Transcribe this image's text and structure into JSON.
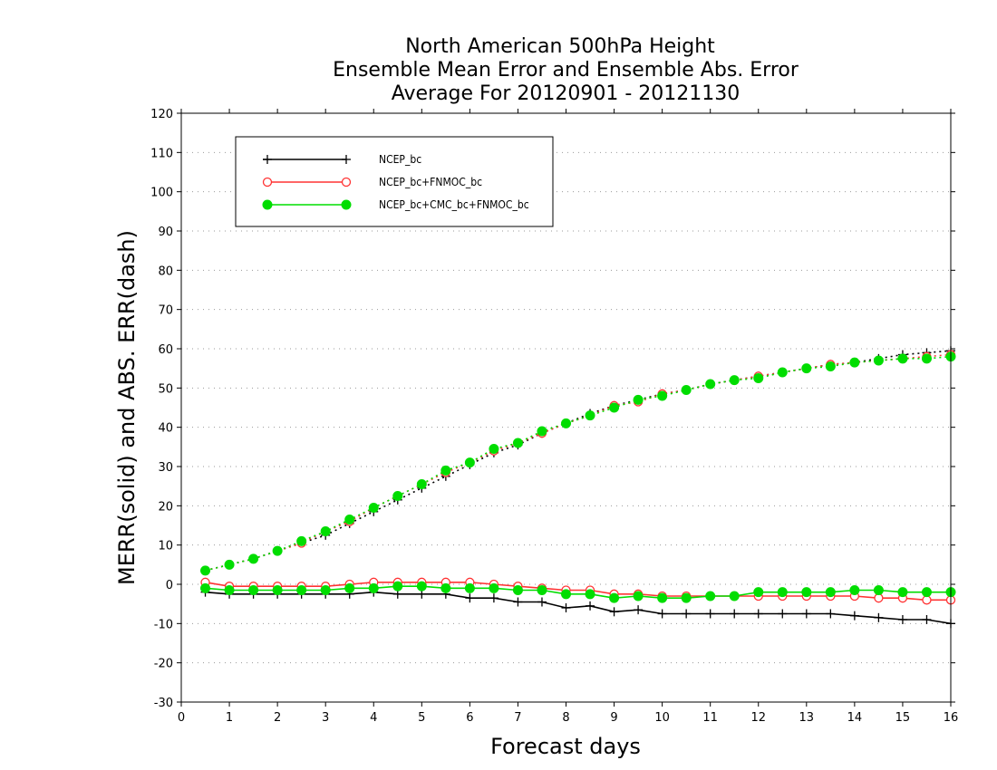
{
  "chart_data": {
    "type": "line",
    "title_lines": [
      "North American 500hPa Height",
      "Ensemble Mean Error and Ensemble Abs. Error",
      "Average For 20120901 - 20121130"
    ],
    "xlabel": "Forecast days",
    "ylabel": "MERR(solid) and ABS. ERR(dash)",
    "xlim": [
      0,
      16
    ],
    "ylim": [
      -30,
      120
    ],
    "xticks": [
      0,
      1,
      2,
      3,
      4,
      5,
      6,
      7,
      8,
      9,
      10,
      11,
      12,
      13,
      14,
      15,
      16
    ],
    "yticks": [
      -30,
      -20,
      -10,
      0,
      10,
      20,
      30,
      40,
      50,
      60,
      70,
      80,
      90,
      100,
      110,
      120
    ],
    "grid": true,
    "legend_position": "top-left",
    "x": [
      0.5,
      1,
      1.5,
      2,
      2.5,
      3,
      3.5,
      4,
      4.5,
      5,
      5.5,
      6,
      6.5,
      7,
      7.5,
      8,
      8.5,
      9,
      9.5,
      10,
      10.5,
      11,
      11.5,
      12,
      12.5,
      13,
      13.5,
      14,
      14.5,
      15,
      15.5,
      16
    ],
    "series": [
      {
        "name": "NCEP_bc",
        "color": "#000000",
        "marker": "plus",
        "merr": [
          -2,
          -2.5,
          -2.5,
          -2.5,
          -2.5,
          -2.5,
          -2.5,
          -2,
          -2.5,
          -2.5,
          -2.5,
          -3.5,
          -3.5,
          -4.5,
          -4.5,
          -6,
          -5.5,
          -7,
          -6.5,
          -7.5,
          -7.5,
          -7.5,
          -7.5,
          -7.5,
          -7.5,
          -7.5,
          -7.5,
          -8,
          -8.5,
          -9,
          -9,
          -10
        ],
        "abserr": [
          3.5,
          5,
          6.5,
          8.5,
          10.5,
          12.5,
          15.5,
          18.5,
          21.5,
          24.5,
          27.5,
          30.5,
          33.5,
          35.5,
          38.5,
          41,
          43.5,
          45.5,
          47,
          48.5,
          49.5,
          51,
          52,
          53,
          54,
          55,
          56,
          56.5,
          57.5,
          58.5,
          59,
          59.5
        ]
      },
      {
        "name": "NCEP_bc+FNMOC_bc",
        "color": "#ff3333",
        "marker": "open-circle",
        "merr": [
          0.5,
          -0.5,
          -0.5,
          -0.5,
          -0.5,
          -0.5,
          0,
          0.5,
          0.5,
          0.5,
          0.5,
          0.5,
          0,
          -0.5,
          -1,
          -1.5,
          -1.5,
          -2.5,
          -2.5,
          -3,
          -3,
          -3,
          -3,
          -3,
          -3,
          -3,
          -3,
          -3,
          -3.5,
          -3.5,
          -4,
          -4
        ],
        "abserr": [
          3.5,
          5,
          6.5,
          8.5,
          10.5,
          13.5,
          16,
          19.5,
          22.5,
          25.5,
          28.5,
          31,
          34,
          36,
          38.5,
          41,
          43,
          45.5,
          46.5,
          48.5,
          49.5,
          51,
          52,
          53,
          54,
          55,
          56,
          56.5,
          57,
          57.5,
          58,
          58.5
        ]
      },
      {
        "name": "NCEP_bc+CMC_bc+FNMOC_bc",
        "color": "#00dd00",
        "marker": "filled-circle",
        "merr": [
          -1,
          -1.5,
          -1.5,
          -1.5,
          -1.5,
          -1.5,
          -1,
          -1,
          -0.5,
          -0.5,
          -1,
          -1,
          -1,
          -1.5,
          -1.5,
          -2.5,
          -2.5,
          -3.5,
          -3,
          -3.5,
          -3.5,
          -3,
          -3,
          -2,
          -2,
          -2,
          -2,
          -1.5,
          -1.5,
          -2,
          -2,
          -2
        ],
        "abserr": [
          3.5,
          5,
          6.5,
          8.5,
          11,
          13.5,
          16.5,
          19.5,
          22.5,
          25.5,
          29,
          31,
          34.5,
          36,
          39,
          41,
          43,
          45,
          47,
          48,
          49.5,
          51,
          52,
          52.5,
          54,
          55,
          55.5,
          56.5,
          57,
          57.5,
          57.5,
          58
        ]
      }
    ]
  }
}
